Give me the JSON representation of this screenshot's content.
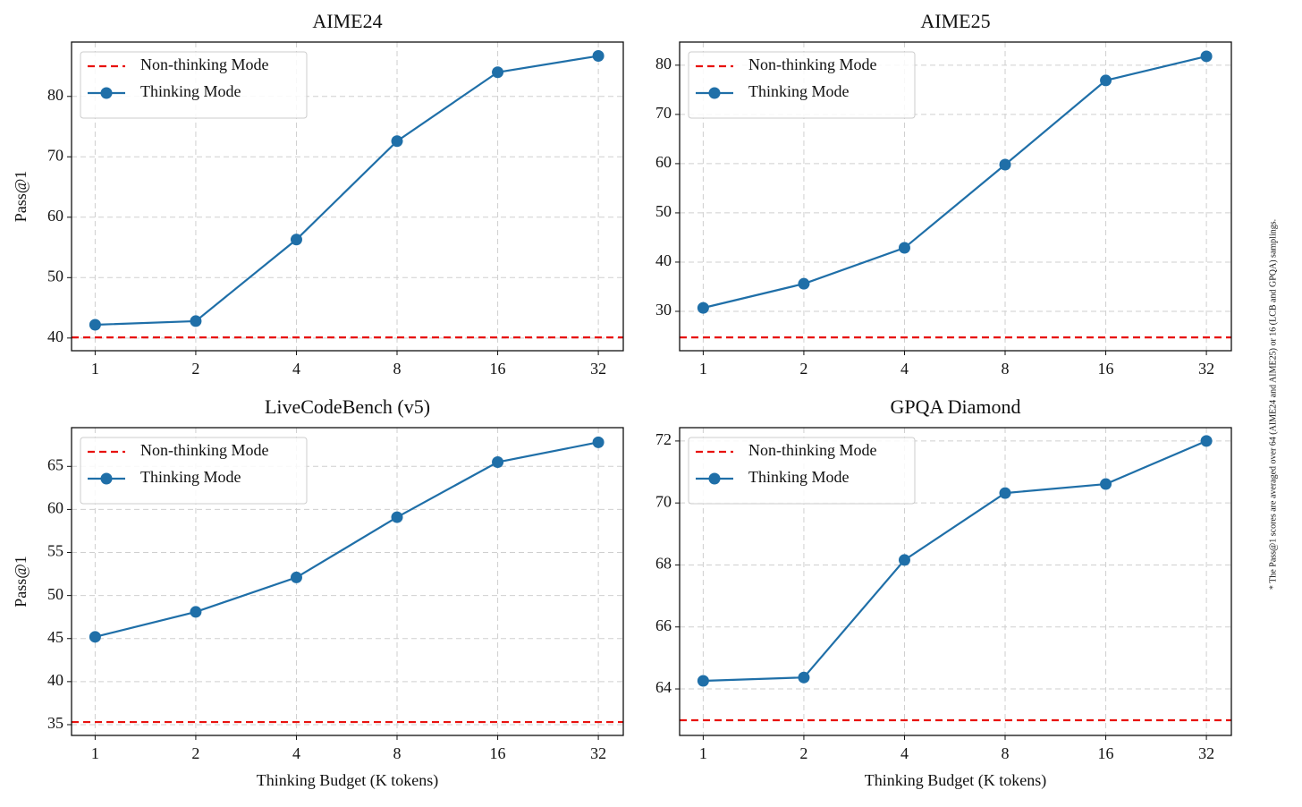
{
  "chart_data": [
    {
      "type": "line",
      "title": "AIME24",
      "ylabel": "Pass@1",
      "x": [
        1,
        2,
        4,
        8,
        16,
        32
      ],
      "xscale": "log",
      "xlim": [
        0.85,
        38
      ],
      "xticks": [
        1,
        2,
        4,
        8,
        16,
        32
      ],
      "ylim": [
        37.9,
        89
      ],
      "yticks": [
        40,
        50,
        60,
        70,
        80
      ],
      "grid": true,
      "legend": "upper left",
      "series": [
        {
          "name": "Non-thinking Mode",
          "color": "#e8120f",
          "style": "dashed",
          "value": 40.1
        },
        {
          "name": "Thinking Mode",
          "color": "#1f6fa8",
          "style": "solid-marker",
          "values": [
            42.2,
            42.8,
            56.3,
            72.6,
            84.0,
            86.7
          ]
        }
      ]
    },
    {
      "type": "line",
      "title": "AIME25",
      "x": [
        1,
        2,
        4,
        8,
        16,
        32
      ],
      "xscale": "log",
      "xlim": [
        0.85,
        38
      ],
      "xticks": [
        1,
        2,
        4,
        8,
        16,
        32
      ],
      "ylim": [
        22,
        84.7
      ],
      "yticks": [
        30,
        40,
        50,
        60,
        70,
        80
      ],
      "grid": true,
      "legend": "upper left",
      "series": [
        {
          "name": "Non-thinking Mode",
          "color": "#e8120f",
          "style": "dashed",
          "value": 24.7
        },
        {
          "name": "Thinking Mode",
          "color": "#1f6fa8",
          "style": "solid-marker",
          "values": [
            30.7,
            35.6,
            42.9,
            59.8,
            76.9,
            81.8
          ]
        }
      ]
    },
    {
      "type": "line",
      "title": "LiveCodeBench (v5)",
      "ylabel": "Pass@1",
      "xlabel": "Thinking Budget (K tokens)",
      "x": [
        1,
        2,
        4,
        8,
        16,
        32
      ],
      "xscale": "log",
      "xlim": [
        0.85,
        38
      ],
      "xticks": [
        1,
        2,
        4,
        8,
        16,
        32
      ],
      "ylim": [
        33.75,
        69.5
      ],
      "yticks": [
        35,
        40,
        45,
        50,
        55,
        60,
        65
      ],
      "grid": true,
      "legend": "upper left",
      "series": [
        {
          "name": "Non-thinking Mode",
          "color": "#e8120f",
          "style": "dashed",
          "value": 35.3
        },
        {
          "name": "Thinking Mode",
          "color": "#1f6fa8",
          "style": "solid-marker",
          "values": [
            45.2,
            48.1,
            52.1,
            59.1,
            65.5,
            67.8
          ]
        }
      ]
    },
    {
      "type": "line",
      "title": "GPQA Diamond",
      "xlabel": "Thinking Budget (K tokens)",
      "x": [
        1,
        2,
        4,
        8,
        16,
        32
      ],
      "xscale": "log",
      "xlim": [
        0.85,
        38
      ],
      "xticks": [
        1,
        2,
        4,
        8,
        16,
        32
      ],
      "ylim": [
        62.5,
        72.43
      ],
      "yticks": [
        64,
        66,
        68,
        70,
        72
      ],
      "grid": true,
      "legend": "upper left",
      "series": [
        {
          "name": "Non-thinking Mode",
          "color": "#e8120f",
          "style": "dashed",
          "value": 62.99
        },
        {
          "name": "Thinking Mode",
          "color": "#1f6fa8",
          "style": "solid-marker",
          "values": [
            64.26,
            64.37,
            68.16,
            70.32,
            70.61,
            72.0
          ]
        }
      ]
    }
  ],
  "footnote": "* The Pass@1 scores are averaged over 64 (AIME24 and AIME25) or 16 (LCB and GPQA) samplings."
}
